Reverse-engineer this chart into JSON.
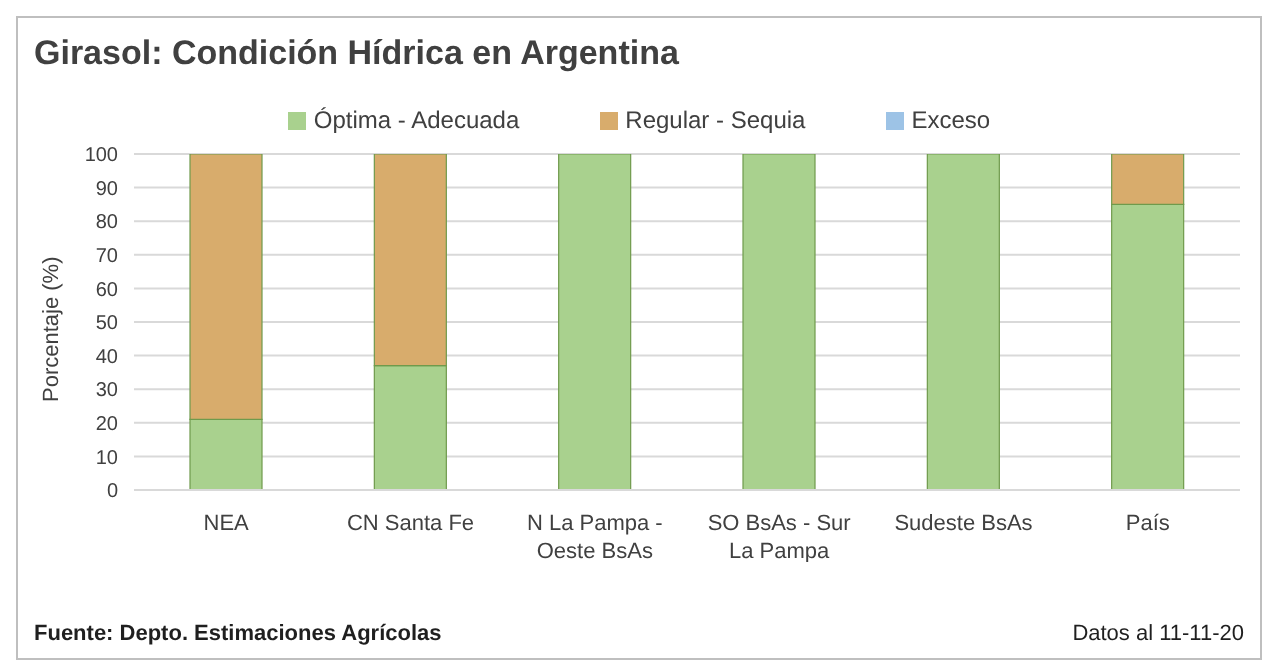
{
  "chart_data": {
    "type": "bar",
    "title": "Girasol: Condición Hídrica en Argentina",
    "ylabel": "Porcentaje (%)",
    "categories": [
      "NEA",
      "CN Santa Fe",
      "N La Pampa - Oeste BsAs",
      "SO BsAs - Sur La Pampa",
      "Sudeste BsAs",
      "País"
    ],
    "series": [
      {
        "name": "Óptima - Adecuada",
        "color": "#a9d18e",
        "values": [
          21,
          37,
          100,
          100,
          100,
          85
        ]
      },
      {
        "name": "Regular - Sequia",
        "color": "#d8ac6c",
        "values": [
          79,
          63,
          0,
          0,
          0,
          15
        ]
      },
      {
        "name": "Exceso",
        "color": "#9dc3e6",
        "values": [
          0,
          0,
          0,
          0,
          0,
          0
        ]
      }
    ],
    "stacked": true,
    "ylim": [
      0,
      100
    ],
    "yticks": [
      0,
      10,
      20,
      30,
      40,
      50,
      60,
      70,
      80,
      90,
      100
    ],
    "grid": "y",
    "legend": "top",
    "annotations": [
      "Fuente: Depto. Estimaciones Agrícolas",
      "Datos al 11-11-20"
    ]
  }
}
